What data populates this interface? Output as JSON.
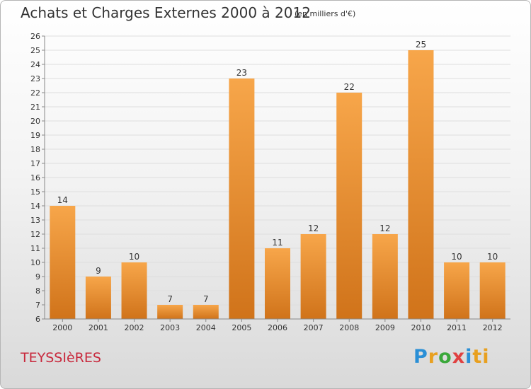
{
  "title": "Achats et Charges Externes 2000 à 2012",
  "unit": "(en milliers d'€)",
  "place": "TEYSSIèRES",
  "logo": {
    "text": "Proxiti",
    "parts": [
      "P",
      "r",
      "o",
      "x",
      "i",
      "ti"
    ]
  },
  "colors": {
    "bar_top": "#f7a64a",
    "bar_bottom": "#d0731a",
    "place": "#c8283c"
  },
  "chart_data": {
    "type": "bar",
    "title": "Achats et Charges Externes 2000 à 2012",
    "subtitle": "(en milliers d'€)",
    "xlabel": "",
    "ylabel": "",
    "categories": [
      "2000",
      "2001",
      "2002",
      "2003",
      "2004",
      "2005",
      "2006",
      "2007",
      "2008",
      "2009",
      "2010",
      "2011",
      "2012"
    ],
    "values": [
      14,
      9,
      10,
      7,
      7,
      23,
      11,
      12,
      22,
      12,
      25,
      10,
      10
    ],
    "ylim": [
      6,
      26
    ],
    "yticks": [
      6,
      7,
      8,
      9,
      10,
      11,
      12,
      13,
      14,
      15,
      16,
      17,
      18,
      19,
      20,
      21,
      22,
      23,
      24,
      25,
      26
    ],
    "grid": true,
    "legend": "none"
  }
}
